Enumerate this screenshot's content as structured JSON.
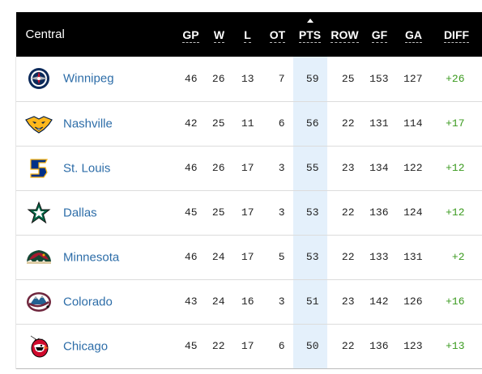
{
  "division": "Central",
  "columns": [
    {
      "key": "gp",
      "label": "GP"
    },
    {
      "key": "w",
      "label": "W"
    },
    {
      "key": "l",
      "label": "L"
    },
    {
      "key": "ot",
      "label": "OT"
    },
    {
      "key": "pts",
      "label": "PTS"
    },
    {
      "key": "row",
      "label": "ROW"
    },
    {
      "key": "gf",
      "label": "GF"
    },
    {
      "key": "ga",
      "label": "GA"
    },
    {
      "key": "diff",
      "label": "DIFF"
    }
  ],
  "sorted_column": "pts",
  "teams": [
    {
      "name": "Winnipeg",
      "logo": "winnipeg-jets-logo-icon",
      "gp": "46",
      "w": "26",
      "l": "13",
      "ot": "7",
      "pts": "59",
      "row": "25",
      "gf": "153",
      "ga": "127",
      "diff": "+26"
    },
    {
      "name": "Nashville",
      "logo": "nashville-predators-logo-icon",
      "gp": "42",
      "w": "25",
      "l": "11",
      "ot": "6",
      "pts": "56",
      "row": "22",
      "gf": "131",
      "ga": "114",
      "diff": "+17"
    },
    {
      "name": "St. Louis",
      "logo": "st-louis-blues-logo-icon",
      "gp": "46",
      "w": "26",
      "l": "17",
      "ot": "3",
      "pts": "55",
      "row": "23",
      "gf": "134",
      "ga": "122",
      "diff": "+12"
    },
    {
      "name": "Dallas",
      "logo": "dallas-stars-logo-icon",
      "gp": "45",
      "w": "25",
      "l": "17",
      "ot": "3",
      "pts": "53",
      "row": "22",
      "gf": "136",
      "ga": "124",
      "diff": "+12"
    },
    {
      "name": "Minnesota",
      "logo": "minnesota-wild-logo-icon",
      "gp": "46",
      "w": "24",
      "l": "17",
      "ot": "5",
      "pts": "53",
      "row": "22",
      "gf": "133",
      "ga": "131",
      "diff": "+2"
    },
    {
      "name": "Colorado",
      "logo": "colorado-avalanche-logo-icon",
      "gp": "43",
      "w": "24",
      "l": "16",
      "ot": "3",
      "pts": "51",
      "row": "23",
      "gf": "142",
      "ga": "126",
      "diff": "+16"
    },
    {
      "name": "Chicago",
      "logo": "chicago-blackhawks-logo-icon",
      "gp": "45",
      "w": "22",
      "l": "17",
      "ot": "6",
      "pts": "50",
      "row": "22",
      "gf": "136",
      "ga": "123",
      "diff": "+13"
    }
  ],
  "colors": {
    "header_bg": "#000000",
    "team_link": "#2d6da8",
    "diff_positive": "#3a9a1e",
    "pts_highlight": "#e4f0fb"
  }
}
